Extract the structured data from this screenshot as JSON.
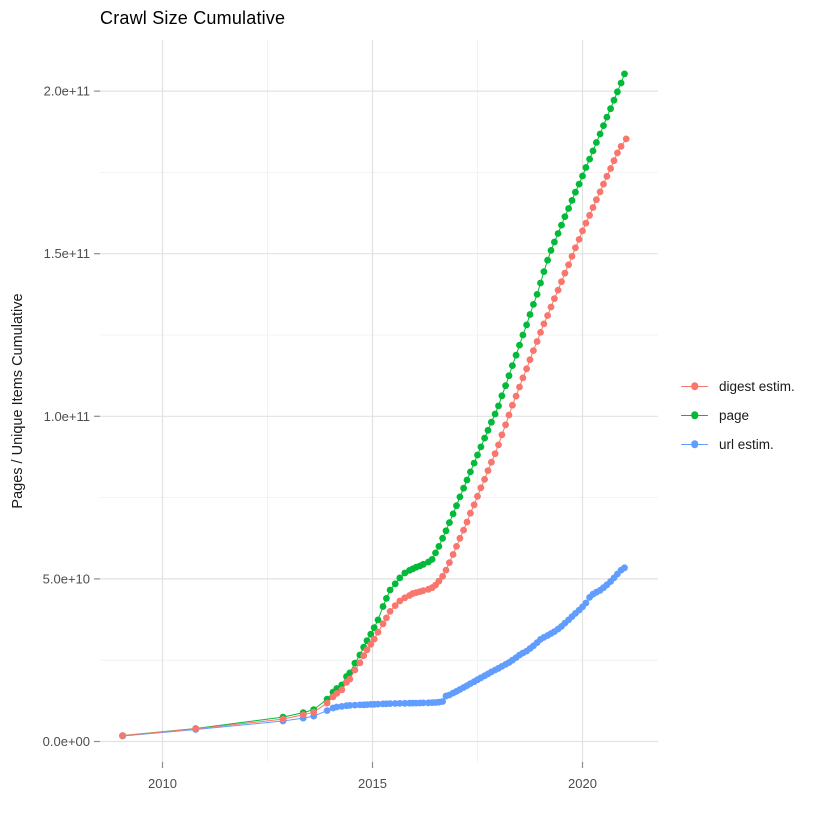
{
  "title": "Crawl Size Cumulative",
  "axes": {
    "y_label": "Pages / Unique Items Cumulative",
    "y_ticks": [
      {
        "label": "0.0e+00",
        "value": 0
      },
      {
        "label": "5.0e+10",
        "value": 50
      },
      {
        "label": "1.0e+11",
        "value": 100
      },
      {
        "label": "1.5e+11",
        "value": 150
      },
      {
        "label": "2.0e+11",
        "value": 200
      }
    ],
    "x_ticks": [
      {
        "label": "2010",
        "value": 2010
      },
      {
        "label": "2015",
        "value": 2015
      },
      {
        "label": "2020",
        "value": 2020
      }
    ]
  },
  "legend": {
    "items": [
      {
        "label": "digest estim.",
        "color": "#F8766D"
      },
      {
        "label": "page",
        "color": "#00BA38"
      },
      {
        "label": "url estim.",
        "color": "#619CFF"
      }
    ]
  },
  "chart_data": {
    "type": "scatter",
    "title": "Crawl Size Cumulative",
    "xlabel": "",
    "ylabel": "Pages / Unique Items Cumulative",
    "x_unit": "year",
    "y_unit_note": "values stored in billions (1e9); axis shows e-notation",
    "xlim": [
      2008.5,
      2021.8
    ],
    "ylim_billions": [
      -8,
      216
    ],
    "grid": "major+minor",
    "legend_position": "right",
    "marker": "point-with-line",
    "series": [
      {
        "name": "digest estim.",
        "color": "#F8766D",
        "points": [
          [
            2009.05,
            1.8
          ],
          [
            2010.79,
            3.9
          ],
          [
            2012.87,
            6.9
          ],
          [
            2013.35,
            8.2
          ],
          [
            2013.6,
            9.0
          ],
          [
            2013.92,
            11.8
          ],
          [
            2014.06,
            13.7
          ],
          [
            2014.15,
            14.8
          ],
          [
            2014.27,
            15.9
          ],
          [
            2014.38,
            18.2
          ],
          [
            2014.46,
            19.2
          ],
          [
            2014.58,
            22.0
          ],
          [
            2014.7,
            24.2
          ],
          [
            2014.79,
            26.4
          ],
          [
            2014.87,
            28.2
          ],
          [
            2014.96,
            29.9
          ],
          [
            2015.04,
            31.5
          ],
          [
            2015.13,
            33.6
          ],
          [
            2015.25,
            36.2
          ],
          [
            2015.33,
            38.0
          ],
          [
            2015.42,
            40.0
          ],
          [
            2015.54,
            41.8
          ],
          [
            2015.65,
            43.2
          ],
          [
            2015.77,
            44.2
          ],
          [
            2015.88,
            44.9
          ],
          [
            2015.96,
            45.5
          ],
          [
            2016.04,
            45.8
          ],
          [
            2016.13,
            46.1
          ],
          [
            2016.21,
            46.4
          ],
          [
            2016.33,
            46.8
          ],
          [
            2016.42,
            47.3
          ],
          [
            2016.5,
            48.1
          ],
          [
            2016.58,
            49.3
          ],
          [
            2016.67,
            50.8
          ],
          [
            2016.75,
            52.7
          ],
          [
            2016.83,
            55.0
          ],
          [
            2016.92,
            57.5
          ],
          [
            2017.0,
            60.0
          ],
          [
            2017.08,
            62.5
          ],
          [
            2017.17,
            65.0
          ],
          [
            2017.25,
            67.5
          ],
          [
            2017.33,
            70.2
          ],
          [
            2017.42,
            72.8
          ],
          [
            2017.5,
            75.4
          ],
          [
            2017.58,
            78.0
          ],
          [
            2017.67,
            80.6
          ],
          [
            2017.75,
            83.3
          ],
          [
            2017.83,
            85.9
          ],
          [
            2017.92,
            88.5
          ],
          [
            2018.0,
            91.2
          ],
          [
            2018.08,
            94.3
          ],
          [
            2018.17,
            97.4
          ],
          [
            2018.25,
            100.4
          ],
          [
            2018.33,
            103.4
          ],
          [
            2018.42,
            106.2
          ],
          [
            2018.5,
            109.0
          ],
          [
            2018.58,
            111.8
          ],
          [
            2018.67,
            114.6
          ],
          [
            2018.75,
            117.4
          ],
          [
            2018.83,
            120.2
          ],
          [
            2018.92,
            123.0
          ],
          [
            2019.0,
            125.8
          ],
          [
            2019.08,
            128.4
          ],
          [
            2019.17,
            131.0
          ],
          [
            2019.25,
            133.6
          ],
          [
            2019.33,
            136.2
          ],
          [
            2019.42,
            138.8
          ],
          [
            2019.5,
            141.4
          ],
          [
            2019.58,
            144.0
          ],
          [
            2019.67,
            146.6
          ],
          [
            2019.75,
            149.2
          ],
          [
            2019.83,
            151.8
          ],
          [
            2019.92,
            154.4
          ],
          [
            2020.0,
            157.0
          ],
          [
            2020.08,
            159.4
          ],
          [
            2020.17,
            161.8
          ],
          [
            2020.25,
            164.2
          ],
          [
            2020.33,
            166.6
          ],
          [
            2020.42,
            169.0
          ],
          [
            2020.5,
            171.4
          ],
          [
            2020.58,
            173.8
          ],
          [
            2020.67,
            176.2
          ],
          [
            2020.75,
            178.6
          ],
          [
            2020.83,
            181.0
          ],
          [
            2020.92,
            183.0
          ],
          [
            2021.04,
            185.3
          ]
        ]
      },
      {
        "name": "page",
        "color": "#00BA38",
        "points": [
          [
            2009.05,
            1.8
          ],
          [
            2010.79,
            4.0
          ],
          [
            2012.87,
            7.5
          ],
          [
            2013.35,
            8.9
          ],
          [
            2013.6,
            9.8
          ],
          [
            2013.92,
            13.0
          ],
          [
            2014.06,
            15.2
          ],
          [
            2014.15,
            16.3
          ],
          [
            2014.27,
            17.4
          ],
          [
            2014.38,
            20.0
          ],
          [
            2014.46,
            21.1
          ],
          [
            2014.58,
            24.1
          ],
          [
            2014.7,
            26.6
          ],
          [
            2014.79,
            29.0
          ],
          [
            2014.87,
            31.0
          ],
          [
            2014.96,
            33.0
          ],
          [
            2015.04,
            35.0
          ],
          [
            2015.13,
            37.4
          ],
          [
            2015.25,
            41.5
          ],
          [
            2015.33,
            44.0
          ],
          [
            2015.42,
            46.6
          ],
          [
            2015.54,
            48.5
          ],
          [
            2015.65,
            50.3
          ],
          [
            2015.77,
            51.8
          ],
          [
            2015.88,
            52.6
          ],
          [
            2015.96,
            53.1
          ],
          [
            2016.04,
            53.6
          ],
          [
            2016.13,
            54.0
          ],
          [
            2016.21,
            54.5
          ],
          [
            2016.33,
            55.2
          ],
          [
            2016.42,
            56.0
          ],
          [
            2016.5,
            58.0
          ],
          [
            2016.58,
            60.0
          ],
          [
            2016.67,
            62.5
          ],
          [
            2016.75,
            64.8
          ],
          [
            2016.83,
            67.3
          ],
          [
            2016.92,
            70.0
          ],
          [
            2017.0,
            72.5
          ],
          [
            2017.08,
            75.2
          ],
          [
            2017.17,
            77.9
          ],
          [
            2017.25,
            80.4
          ],
          [
            2017.33,
            82.9
          ],
          [
            2017.42,
            85.6
          ],
          [
            2017.5,
            88.1
          ],
          [
            2017.58,
            90.6
          ],
          [
            2017.67,
            93.3
          ],
          [
            2017.75,
            95.7
          ],
          [
            2017.83,
            98.2
          ],
          [
            2017.92,
            100.7
          ],
          [
            2018.0,
            103.2
          ],
          [
            2018.08,
            106.3
          ],
          [
            2018.17,
            109.4
          ],
          [
            2018.25,
            112.5
          ],
          [
            2018.33,
            115.6
          ],
          [
            2018.42,
            118.8
          ],
          [
            2018.5,
            121.9
          ],
          [
            2018.58,
            125.0
          ],
          [
            2018.67,
            128.1
          ],
          [
            2018.75,
            131.3
          ],
          [
            2018.83,
            134.4
          ],
          [
            2018.92,
            137.5
          ],
          [
            2019.0,
            141.0
          ],
          [
            2019.08,
            144.5
          ],
          [
            2019.17,
            148.0
          ],
          [
            2019.25,
            151.0
          ],
          [
            2019.33,
            153.6
          ],
          [
            2019.42,
            156.2
          ],
          [
            2019.5,
            158.8
          ],
          [
            2019.58,
            161.4
          ],
          [
            2019.67,
            163.9
          ],
          [
            2019.75,
            166.4
          ],
          [
            2019.83,
            168.9
          ],
          [
            2019.92,
            171.4
          ],
          [
            2020.0,
            173.9
          ],
          [
            2020.08,
            176.5
          ],
          [
            2020.17,
            179.1
          ],
          [
            2020.25,
            181.6
          ],
          [
            2020.33,
            184.2
          ],
          [
            2020.42,
            186.8
          ],
          [
            2020.5,
            189.4
          ],
          [
            2020.58,
            192.0
          ],
          [
            2020.67,
            194.6
          ],
          [
            2020.75,
            197.2
          ],
          [
            2020.83,
            199.8
          ],
          [
            2020.92,
            202.5
          ],
          [
            2021.0,
            205.3
          ]
        ]
      },
      {
        "name": "url estim.",
        "color": "#619CFF",
        "points": [
          [
            2009.05,
            1.7
          ],
          [
            2010.79,
            3.7
          ],
          [
            2012.87,
            6.3
          ],
          [
            2013.35,
            7.2
          ],
          [
            2013.6,
            7.8
          ],
          [
            2013.92,
            9.5
          ],
          [
            2014.06,
            10.3
          ],
          [
            2014.15,
            10.6
          ],
          [
            2014.27,
            10.8
          ],
          [
            2014.38,
            11.0
          ],
          [
            2014.46,
            11.1
          ],
          [
            2014.58,
            11.2
          ],
          [
            2014.7,
            11.25
          ],
          [
            2014.79,
            11.3
          ],
          [
            2014.87,
            11.35
          ],
          [
            2014.96,
            11.4
          ],
          [
            2015.04,
            11.45
          ],
          [
            2015.13,
            11.5
          ],
          [
            2015.25,
            11.55
          ],
          [
            2015.33,
            11.6
          ],
          [
            2015.42,
            11.65
          ],
          [
            2015.54,
            11.7
          ],
          [
            2015.65,
            11.72
          ],
          [
            2015.77,
            11.75
          ],
          [
            2015.88,
            11.78
          ],
          [
            2015.96,
            11.8
          ],
          [
            2016.04,
            11.82
          ],
          [
            2016.13,
            11.85
          ],
          [
            2016.21,
            11.87
          ],
          [
            2016.33,
            11.9
          ],
          [
            2016.42,
            11.95
          ],
          [
            2016.5,
            12.0
          ],
          [
            2016.58,
            12.1
          ],
          [
            2016.67,
            12.3
          ],
          [
            2016.75,
            14.0
          ],
          [
            2016.83,
            14.3
          ],
          [
            2016.92,
            14.9
          ],
          [
            2017.0,
            15.4
          ],
          [
            2017.08,
            16.0
          ],
          [
            2017.17,
            16.6
          ],
          [
            2017.25,
            17.2
          ],
          [
            2017.33,
            17.8
          ],
          [
            2017.42,
            18.4
          ],
          [
            2017.5,
            19.0
          ],
          [
            2017.58,
            19.6
          ],
          [
            2017.67,
            20.2
          ],
          [
            2017.75,
            20.8
          ],
          [
            2017.83,
            21.4
          ],
          [
            2017.92,
            22.0
          ],
          [
            2018.0,
            22.5
          ],
          [
            2018.08,
            23.1
          ],
          [
            2018.17,
            23.7
          ],
          [
            2018.25,
            24.3
          ],
          [
            2018.33,
            25.0
          ],
          [
            2018.42,
            25.8
          ],
          [
            2018.5,
            26.6
          ],
          [
            2018.58,
            27.2
          ],
          [
            2018.67,
            27.8
          ],
          [
            2018.75,
            28.6
          ],
          [
            2018.83,
            29.4
          ],
          [
            2018.92,
            30.4
          ],
          [
            2019.0,
            31.4
          ],
          [
            2019.08,
            32.0
          ],
          [
            2019.17,
            32.6
          ],
          [
            2019.25,
            33.2
          ],
          [
            2019.33,
            33.8
          ],
          [
            2019.42,
            34.6
          ],
          [
            2019.5,
            35.4
          ],
          [
            2019.58,
            36.4
          ],
          [
            2019.67,
            37.4
          ],
          [
            2019.75,
            38.4
          ],
          [
            2019.83,
            39.4
          ],
          [
            2019.92,
            40.4
          ],
          [
            2020.0,
            41.4
          ],
          [
            2020.08,
            42.6
          ],
          [
            2020.17,
            44.3
          ],
          [
            2020.25,
            45.3
          ],
          [
            2020.33,
            45.9
          ],
          [
            2020.42,
            46.5
          ],
          [
            2020.5,
            47.3
          ],
          [
            2020.58,
            48.2
          ],
          [
            2020.67,
            49.2
          ],
          [
            2020.75,
            50.3
          ],
          [
            2020.83,
            51.5
          ],
          [
            2020.92,
            52.7
          ],
          [
            2021.0,
            53.4
          ]
        ]
      }
    ]
  },
  "style": {
    "grid_major_color": "#e2e2e2",
    "grid_minor_color": "#efefef",
    "tick_mark_color": "#8c8c8c",
    "tick_label_color": "#4d4d4d",
    "background": "#ffffff"
  }
}
